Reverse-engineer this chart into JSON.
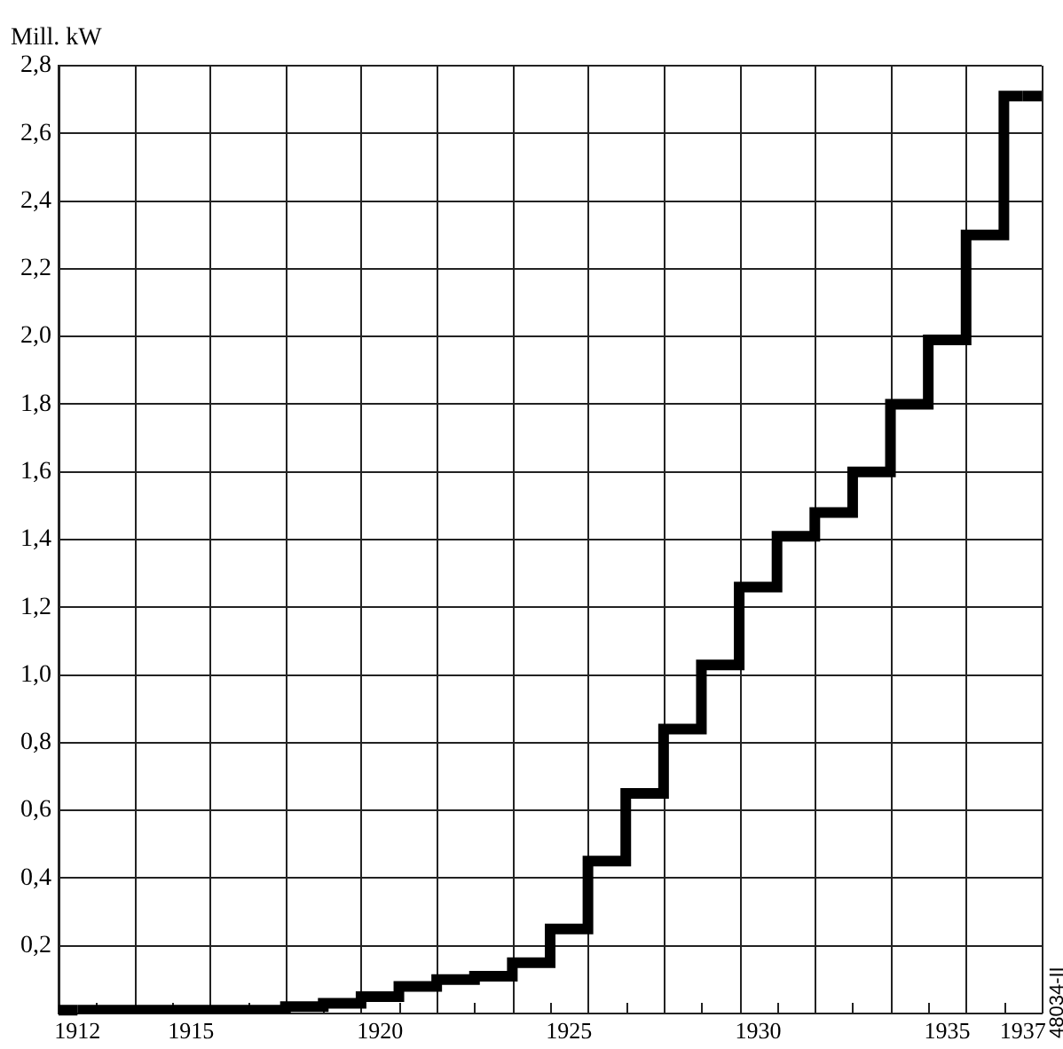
{
  "chart_data": {
    "type": "step",
    "ylabel": "Mill. kW",
    "annotations": [
      "48034-II"
    ],
    "categories": [
      "1912",
      null,
      null,
      "1915",
      null,
      null,
      null,
      null,
      "1920",
      null,
      null,
      null,
      null,
      "1925",
      null,
      null,
      null,
      null,
      "1930",
      null,
      null,
      null,
      null,
      "1935",
      null,
      "1937"
    ],
    "series": [
      {
        "color": "#000000",
        "values": [
          0.01,
          0.01,
          0.01,
          0.01,
          0.01,
          0.01,
          0.02,
          0.03,
          0.05,
          0.08,
          0.1,
          0.11,
          0.15,
          0.25,
          0.45,
          0.65,
          0.84,
          1.03,
          1.26,
          1.41,
          1.48,
          1.6,
          1.8,
          1.99,
          2.3,
          2.71
        ]
      }
    ],
    "ylim": [
      0,
      2.8
    ],
    "yticks": [
      {
        "value": 0.2,
        "label": "0,2"
      },
      {
        "value": 0.4,
        "label": "0,4"
      },
      {
        "value": 0.6,
        "label": "0,6"
      },
      {
        "value": 0.8,
        "label": "0,8"
      },
      {
        "value": 1.0,
        "label": "1,0"
      },
      {
        "value": 1.2,
        "label": "1,2"
      },
      {
        "value": 1.4,
        "label": "1,4"
      },
      {
        "value": 1.6,
        "label": "1,6"
      },
      {
        "value": 1.8,
        "label": "1,8"
      },
      {
        "value": 2.0,
        "label": "2,0"
      },
      {
        "value": 2.2,
        "label": "2,2"
      },
      {
        "value": 2.4,
        "label": "2,4"
      },
      {
        "value": 2.6,
        "label": "2,6"
      },
      {
        "value": 2.8,
        "label": "2,8"
      }
    ],
    "grid": true,
    "legend": false,
    "marker": "none",
    "line_style": "solid"
  }
}
